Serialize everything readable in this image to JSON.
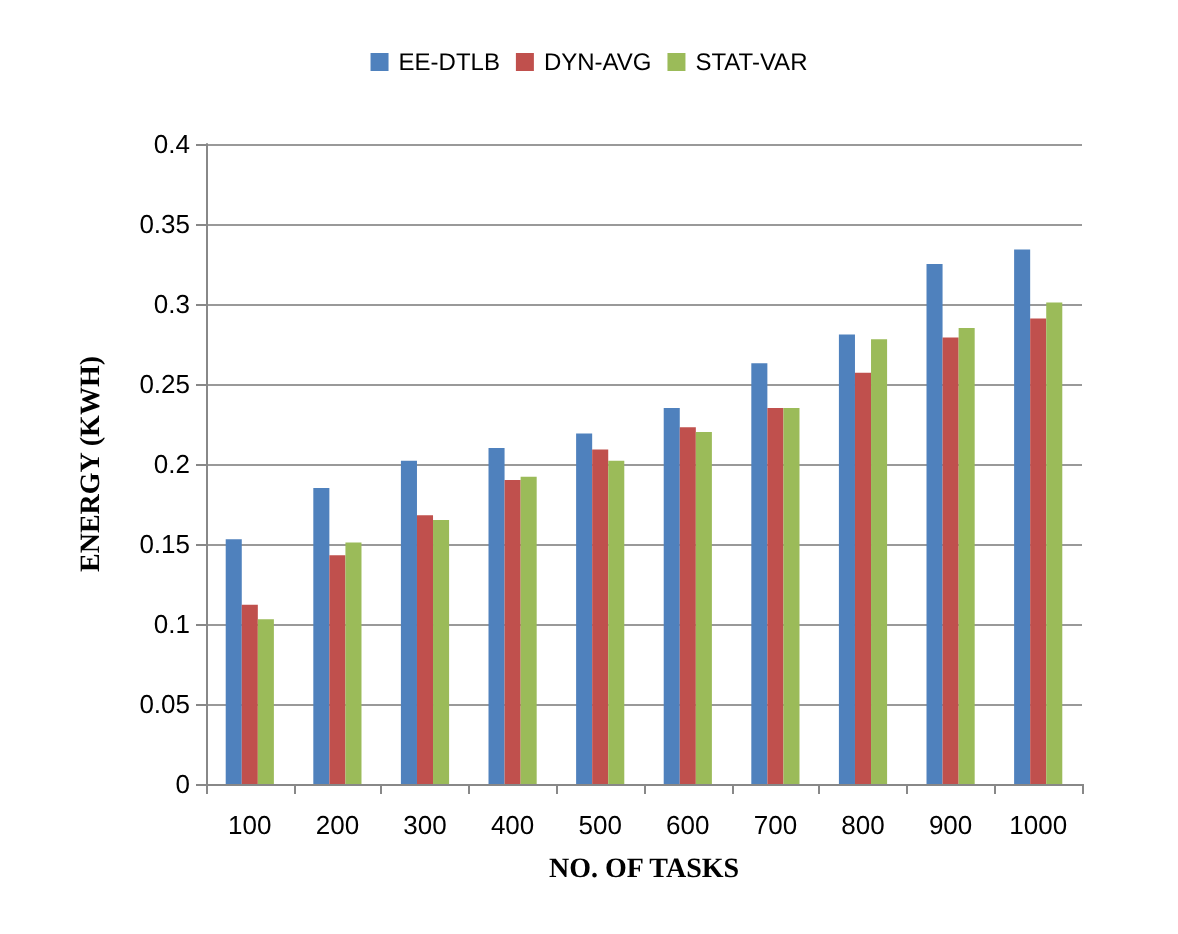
{
  "chart_data": {
    "type": "bar",
    "xlabel": "NO. OF TASKS",
    "ylabel": "ENERGY (KWH)",
    "categories": [
      "100",
      "200",
      "300",
      "400",
      "500",
      "600",
      "700",
      "800",
      "900",
      "1000"
    ],
    "series": [
      {
        "name": "EE-DTLB",
        "color": "#4f81bd",
        "values": [
          0.153,
          0.185,
          0.202,
          0.21,
          0.219,
          0.235,
          0.263,
          0.281,
          0.325,
          0.334
        ]
      },
      {
        "name": "DYN-AVG",
        "color": "#c0504d",
        "values": [
          0.112,
          0.143,
          0.168,
          0.19,
          0.209,
          0.223,
          0.235,
          0.257,
          0.279,
          0.291
        ]
      },
      {
        "name": "STAT-VAR",
        "color": "#9bbb59",
        "values": [
          0.103,
          0.151,
          0.165,
          0.192,
          0.202,
          0.22,
          0.235,
          0.278,
          0.285,
          0.301
        ]
      }
    ],
    "ylim": [
      0,
      0.4
    ],
    "yticks": [
      0,
      0.05,
      0.1,
      0.15,
      0.2,
      0.25,
      0.3,
      0.35,
      0.4
    ],
    "grid": "y",
    "legend": "top"
  }
}
